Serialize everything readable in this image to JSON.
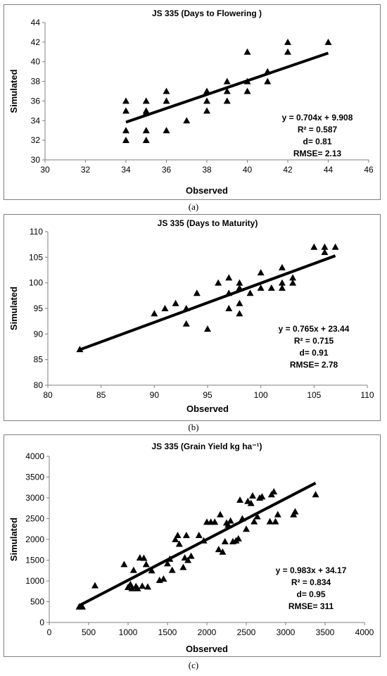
{
  "chart_data": [
    {
      "type": "scatter",
      "title": "JS 335 (Days to Flowering )",
      "xlabel": "Observed",
      "ylabel": "Simulated",
      "xlim": [
        30,
        46
      ],
      "ylim": [
        30,
        44
      ],
      "xticks": [
        "30",
        "32",
        "34",
        "36",
        "38",
        "40",
        "42",
        "44",
        "46"
      ],
      "yticks": [
        "30",
        "32",
        "34",
        "36",
        "38",
        "40",
        "42",
        "44"
      ],
      "grid": false,
      "legend": "none",
      "marker": "triangle",
      "color": "#000000",
      "points": [
        [
          34,
          36
        ],
        [
          34,
          35
        ],
        [
          34,
          33
        ],
        [
          34,
          32
        ],
        [
          35,
          36
        ],
        [
          35,
          35
        ],
        [
          35,
          34.8
        ],
        [
          35,
          33
        ],
        [
          35,
          32
        ],
        [
          36,
          37
        ],
        [
          36,
          36
        ],
        [
          36,
          33
        ],
        [
          37,
          34
        ],
        [
          38,
          37
        ],
        [
          38,
          36
        ],
        [
          38,
          35
        ],
        [
          39,
          38
        ],
        [
          39,
          37
        ],
        [
          39,
          36
        ],
        [
          40,
          41
        ],
        [
          40,
          38
        ],
        [
          40,
          37
        ],
        [
          41,
          39
        ],
        [
          41,
          38
        ],
        [
          42,
          42
        ],
        [
          42,
          41
        ],
        [
          44,
          42
        ]
      ],
      "trendline": {
        "x": [
          34,
          44
        ],
        "slope": 0.704,
        "intercept": 9.908
      },
      "annotations": [
        "y = 0.704x + 9.908",
        "R² = 0.587",
        "d= 0.81",
        "RMSE= 2.13"
      ],
      "caption": "(a)"
    },
    {
      "type": "scatter",
      "title": "JS 335 (Days to Maturity)",
      "xlabel": "Observed",
      "ylabel": "Simulated",
      "xlim": [
        80,
        110
      ],
      "ylim": [
        80,
        110
      ],
      "xticks": [
        "80",
        "85",
        "90",
        "95",
        "100",
        "105",
        "110"
      ],
      "yticks": [
        "80",
        "85",
        "90",
        "95",
        "100",
        "105",
        "110"
      ],
      "grid": false,
      "legend": "none",
      "marker": "triangle",
      "color": "#000000",
      "points": [
        [
          83,
          87
        ],
        [
          90,
          94
        ],
        [
          91,
          95
        ],
        [
          92,
          96
        ],
        [
          93,
          95
        ],
        [
          93,
          92
        ],
        [
          94,
          98
        ],
        [
          95,
          91
        ],
        [
          96,
          100
        ],
        [
          97,
          101
        ],
        [
          97,
          98
        ],
        [
          97,
          95
        ],
        [
          98,
          100
        ],
        [
          98,
          99
        ],
        [
          98,
          96
        ],
        [
          98,
          94
        ],
        [
          99,
          98
        ],
        [
          100,
          102
        ],
        [
          100,
          99
        ],
        [
          101,
          99
        ],
        [
          102,
          103
        ],
        [
          102,
          100
        ],
        [
          102,
          99
        ],
        [
          103,
          101
        ],
        [
          103,
          100
        ],
        [
          105,
          107
        ],
        [
          106,
          107
        ],
        [
          106,
          106
        ],
        [
          107,
          107
        ]
      ],
      "trendline": {
        "x": [
          83,
          107
        ],
        "slope": 0.765,
        "intercept": 23.44
      },
      "annotations": [
        "y = 0.765x + 23.44",
        "R² = 0.715",
        "d= 0.91",
        "RMSE= 2.78"
      ],
      "caption": "(b)"
    },
    {
      "type": "scatter",
      "title": "JS 335 (Grain Yield kg ha⁻¹)",
      "xlabel": "Observed",
      "ylabel": "Simulated",
      "xlim": [
        0,
        4000
      ],
      "ylim": [
        0,
        4000
      ],
      "xticks": [
        "0",
        "500",
        "1000",
        "1500",
        "2000",
        "2500",
        "3000",
        "3500",
        "4000"
      ],
      "yticks": [
        "0",
        "500",
        "1000",
        "1500",
        "2000",
        "2500",
        "3000",
        "3500",
        "4000"
      ],
      "grid": false,
      "legend": "none",
      "marker": "triangle",
      "color": "#000000",
      "points": [
        [
          380,
          380
        ],
        [
          420,
          380
        ],
        [
          580,
          890
        ],
        [
          950,
          1400
        ],
        [
          1000,
          850
        ],
        [
          1030,
          920
        ],
        [
          1050,
          820
        ],
        [
          1070,
          1260
        ],
        [
          1100,
          870
        ],
        [
          1120,
          820
        ],
        [
          1150,
          1560
        ],
        [
          1180,
          880
        ],
        [
          1200,
          1550
        ],
        [
          1230,
          1400
        ],
        [
          1250,
          860
        ],
        [
          1300,
          1250
        ],
        [
          1400,
          1020
        ],
        [
          1450,
          1050
        ],
        [
          1500,
          1420
        ],
        [
          1530,
          1530
        ],
        [
          1560,
          1260
        ],
        [
          1600,
          2000
        ],
        [
          1630,
          2100
        ],
        [
          1650,
          1890
        ],
        [
          1700,
          1330
        ],
        [
          1720,
          1560
        ],
        [
          1740,
          2100
        ],
        [
          1760,
          1500
        ],
        [
          1800,
          1600
        ],
        [
          1900,
          2100
        ],
        [
          1960,
          1970
        ],
        [
          2000,
          2420
        ],
        [
          2050,
          2420
        ],
        [
          2100,
          2420
        ],
        [
          2150,
          1760
        ],
        [
          2170,
          2600
        ],
        [
          2200,
          1700
        ],
        [
          2230,
          1950
        ],
        [
          2250,
          2400
        ],
        [
          2270,
          2350
        ],
        [
          2300,
          2450
        ],
        [
          2330,
          1950
        ],
        [
          2370,
          1970
        ],
        [
          2400,
          2020
        ],
        [
          2420,
          2950
        ],
        [
          2450,
          2500
        ],
        [
          2500,
          2250
        ],
        [
          2520,
          2920
        ],
        [
          2560,
          2870
        ],
        [
          2580,
          3050
        ],
        [
          2600,
          2430
        ],
        [
          2640,
          2550
        ],
        [
          2670,
          3000
        ],
        [
          2700,
          3030
        ],
        [
          2800,
          2430
        ],
        [
          2820,
          3080
        ],
        [
          2850,
          3150
        ],
        [
          2870,
          2430
        ],
        [
          2900,
          2600
        ],
        [
          3100,
          2600
        ],
        [
          3120,
          2670
        ],
        [
          3380,
          3080
        ]
      ],
      "trendline": {
        "x": [
          380,
          3380
        ],
        "slope": 0.983,
        "intercept": 34.17
      },
      "annotations": [
        "y = 0.983x + 34.17",
        "R² = 0.834",
        "d= 0.95",
        "RMSE= 311"
      ],
      "caption": "(c)"
    }
  ]
}
